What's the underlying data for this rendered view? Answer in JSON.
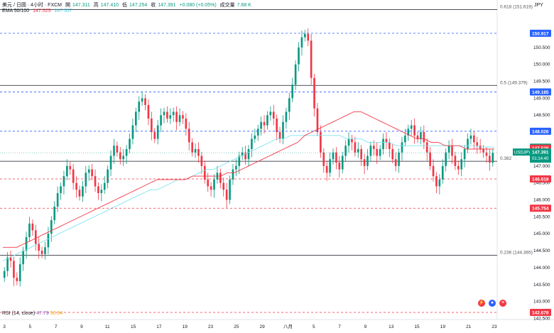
{
  "header": {
    "pair": "美元 / 日圆 · 4小时 · FXCM",
    "open_label": "開",
    "open": "147.311",
    "high_label": "高",
    "high": "147.410",
    "low_label": "低",
    "low": "147.254",
    "close_label": "收",
    "close": "147.391",
    "change": "+0.080 (+0.05%)",
    "volume_label": "成交量",
    "volume": "7.68 K",
    "ema_label": "EMA 50/100",
    "ema50": "147.525",
    "ema100": "147.557"
  },
  "rsi": {
    "label": "RSI (14, close)",
    "value1": "47.79",
    "value2": "50.94"
  },
  "axis_unit": "JPY",
  "colors": {
    "up": "#089981",
    "down": "#f23645",
    "ema50": "#f23645",
    "ema100": "#7fe3f0",
    "fib": "#131722",
    "resistance": "#2962ff",
    "support": "#f23645"
  },
  "chart_data": {
    "type": "candlestick",
    "y_range": [
      142.678,
      151.9
    ],
    "y_ticks": [
      "150.500",
      "150.000",
      "149.500",
      "149.000",
      "148.500",
      "148.000",
      "147.000",
      "146.500",
      "146.000",
      "145.500",
      "145.000",
      "144.500",
      "144.000",
      "143.500",
      "143.000",
      "142.500"
    ],
    "x_ticks": [
      "3",
      "5",
      "7",
      "9",
      "11",
      "15",
      "17",
      "19",
      "23",
      "25",
      "29",
      "八月",
      "5",
      "7",
      "9",
      "13",
      "15",
      "19",
      "21",
      "23"
    ],
    "fib_levels": [
      {
        "label": "0.618 (151.619)",
        "value": 151.619
      },
      {
        "label": "0.5 (149.379)",
        "value": 149.379
      },
      {
        "label": "0.382",
        "value": 147.14
      },
      {
        "label": "0.236 (144.365)",
        "value": 144.365
      }
    ],
    "price_labels": [
      {
        "text": "150.917",
        "value": 150.917,
        "kind": "resistance"
      },
      {
        "text": "149.185",
        "value": 149.185,
        "kind": "resistance"
      },
      {
        "text": "148.026",
        "value": 148.026,
        "kind": "resistance"
      },
      {
        "text": "147.557",
        "value": 147.557,
        "kind": "ema100"
      },
      {
        "text": "147.525",
        "value": 147.525,
        "kind": "ema50"
      },
      {
        "text": "146.618",
        "value": 146.618,
        "kind": "support"
      },
      {
        "text": "145.754",
        "value": 145.754,
        "kind": "support"
      },
      {
        "text": "142.678",
        "value": 142.678,
        "kind": "support"
      }
    ],
    "current_price": {
      "symbol": "USDJPY",
      "price": "147.391",
      "countdown": "01:14:40"
    },
    "closes": [
      143.9,
      144.3,
      144.2,
      143.7,
      143.6,
      144.1,
      144.5,
      144.9,
      145.3,
      145.1,
      144.7,
      144.5,
      144.4,
      144.6,
      145.0,
      145.4,
      145.8,
      146.2,
      146.4,
      146.7,
      147.0,
      146.9,
      146.5,
      146.3,
      146.1,
      146.4,
      146.8,
      146.9,
      146.7,
      146.4,
      146.2,
      146.3,
      146.5,
      146.9,
      147.3,
      147.6,
      147.4,
      147.2,
      147.3,
      147.5,
      147.8,
      148.2,
      148.6,
      148.9,
      149.0,
      148.8,
      148.4,
      148.0,
      147.8,
      148.2,
      148.5,
      148.6,
      148.4,
      148.5,
      148.6,
      148.3,
      148.5,
      148.4,
      148.1,
      147.7,
      147.4,
      147.5,
      147.3,
      147.0,
      146.6,
      146.4,
      146.3,
      146.6,
      146.8,
      146.5,
      146.3,
      146.0,
      146.6,
      146.9,
      147.0,
      147.3,
      147.4,
      147.2,
      147.5,
      147.8,
      147.9,
      148.1,
      148.3,
      148.2,
      148.5,
      148.6,
      148.4,
      148.0,
      147.8,
      148.3,
      148.6,
      149.0,
      149.4,
      150.0,
      150.5,
      150.8,
      150.9,
      150.7,
      149.6,
      148.7,
      148.0,
      147.4,
      147.0,
      146.8,
      147.2,
      147.4,
      147.1,
      146.9,
      147.3,
      147.6,
      147.8,
      147.7,
      147.4,
      147.5,
      147.2,
      147.0,
      147.3,
      147.6,
      147.5,
      147.3,
      147.5,
      147.8,
      147.7,
      147.5,
      147.2,
      147.0,
      147.4,
      147.7,
      147.9,
      148.1,
      148.2,
      147.9,
      147.8,
      148.0,
      147.7,
      147.4,
      147.0,
      146.7,
      146.4,
      146.6,
      147.0,
      147.4,
      147.6,
      147.3,
      147.0,
      146.9,
      147.2,
      147.5,
      147.8,
      147.9,
      147.7,
      147.6,
      147.5,
      147.4,
      147.3,
      147.1,
      147.39
    ],
    "ema50": [
      144.6,
      144.6,
      144.6,
      144.7,
      144.8,
      144.9,
      145.0,
      145.1,
      145.2,
      145.3,
      145.4,
      145.5,
      145.6,
      145.7,
      145.8,
      145.9,
      146.0,
      146.1,
      146.2,
      146.3,
      146.4,
      146.5,
      146.6,
      146.6,
      146.6,
      146.6,
      146.6,
      146.7,
      146.7,
      146.7,
      146.7,
      146.7,
      146.8,
      146.8,
      146.9,
      147.0,
      147.1,
      147.2,
      147.3,
      147.4,
      147.5,
      147.6,
      147.7,
      147.9,
      148.0,
      148.1,
      148.2,
      148.3,
      148.4,
      148.5,
      148.6,
      148.6,
      148.5,
      148.4,
      148.3,
      148.2,
      148.1,
      148.0,
      147.9,
      147.8,
      147.8,
      147.7,
      147.7,
      147.6,
      147.6,
      147.6,
      147.5,
      147.5,
      147.5,
      147.5,
      147.5
    ],
    "ema100": [
      144.2,
      144.3,
      144.4,
      144.5,
      144.6,
      144.7,
      144.8,
      144.9,
      145.0,
      145.1,
      145.2,
      145.3,
      145.4,
      145.5,
      145.6,
      145.7,
      145.8,
      145.9,
      146.0,
      146.1,
      146.2,
      146.3,
      146.3,
      146.4,
      146.5,
      146.6,
      146.6,
      146.7,
      146.8,
      146.9,
      146.9,
      147.0,
      147.1,
      147.2,
      147.3,
      147.4,
      147.5,
      147.6,
      147.7,
      147.8,
      147.8,
      147.9,
      147.9,
      147.9,
      147.9,
      147.9,
      147.9,
      147.9,
      147.9,
      147.8,
      147.8,
      147.8,
      147.7,
      147.7,
      147.7,
      147.7,
      147.6,
      147.6,
      147.6,
      147.6,
      147.6,
      147.6,
      147.6,
      147.6,
      147.6,
      147.6,
      147.6,
      147.6,
      147.56,
      147.56,
      147.557
    ]
  },
  "event_icons": [
    "⚡",
    "●",
    "≡"
  ]
}
